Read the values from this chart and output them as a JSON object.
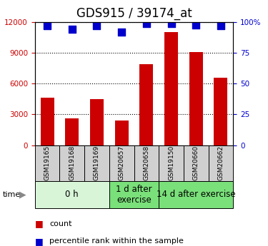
{
  "title": "GDS915 / 39174_at",
  "samples": [
    "GSM19165",
    "GSM19168",
    "GSM19169",
    "GSM20657",
    "GSM20658",
    "GSM19150",
    "GSM20660",
    "GSM20662"
  ],
  "counts": [
    4600,
    2600,
    4500,
    2400,
    7900,
    11000,
    9100,
    6600
  ],
  "percentiles": [
    97,
    94,
    97,
    92,
    99,
    99,
    98,
    97
  ],
  "bar_color": "#cc0000",
  "dot_color": "#0000cc",
  "ylim_left": [
    0,
    12000
  ],
  "ylim_right": [
    0,
    100
  ],
  "yticks_left": [
    0,
    3000,
    6000,
    9000,
    12000
  ],
  "yticks_right": [
    0,
    25,
    50,
    75,
    100
  ],
  "ytick_labels_right": [
    "0",
    "25",
    "50",
    "75",
    "100%"
  ],
  "groups": [
    {
      "label": "0 h",
      "start": 0,
      "end": 3,
      "color": "#d8f5d8"
    },
    {
      "label": "1 d after\nexercise",
      "start": 3,
      "end": 5,
      "color": "#7ae07a"
    },
    {
      "label": "14 d after exercise",
      "start": 5,
      "end": 8,
      "color": "#7ae07a"
    }
  ],
  "sample_bg": "#d0d0d0",
  "legend_count_label": "count",
  "legend_pct_label": "percentile rank within the sample",
  "tick_label_color_left": "#cc0000",
  "tick_label_color_right": "#0000cc",
  "bar_width": 0.55,
  "dot_size": 45,
  "title_fontsize": 12,
  "tick_fontsize": 7.5,
  "legend_fontsize": 8,
  "group_label_fontsize": 8.5,
  "sample_label_fontsize": 6.5
}
